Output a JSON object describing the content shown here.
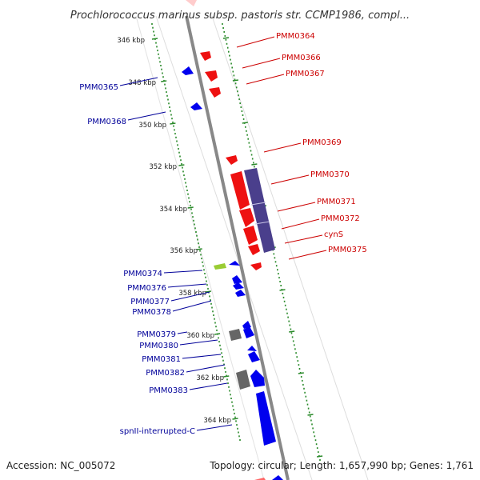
{
  "title": "Prochlorococcus marinus subsp. pastoris str. CCMP1986, compl...",
  "footer": {
    "accession": "Accession: NC_005072",
    "summary": "Topology: circular; Length: 1,657,990 bp; Genes: 1,761"
  },
  "colors": {
    "forward": "#ff0000",
    "reverse": "#0000ff",
    "forward_label": "#cc0000",
    "reverse_label": "#000099",
    "cog_band": "#4a3f8c",
    "pseudo": "#666666",
    "rna": "#99cc33",
    "ruler": "#2a8a2a",
    "backbone": "#888888"
  },
  "ticks": [
    "346 kbp",
    "348 kbp",
    "350 kbp",
    "352 kbp",
    "354 kbp",
    "356 kbp",
    "358 kbp",
    "360 kbp",
    "362 kbp",
    "364 kbp"
  ],
  "forward_genes": [
    "PMM0364",
    "PMM0366",
    "PMM0367",
    "PMM0369",
    "PMM0370",
    "PMM0371",
    "PMM0372",
    "cynS",
    "PMM0375"
  ],
  "reverse_genes": [
    "PMM0365",
    "PMM0368",
    "PMM0374",
    "PMM0376",
    "PMM0377",
    "PMM0378",
    "PMM0379",
    "PMM0380",
    "PMM0381",
    "PMM0382",
    "PMM0383",
    "spnII-interrupted-C"
  ]
}
